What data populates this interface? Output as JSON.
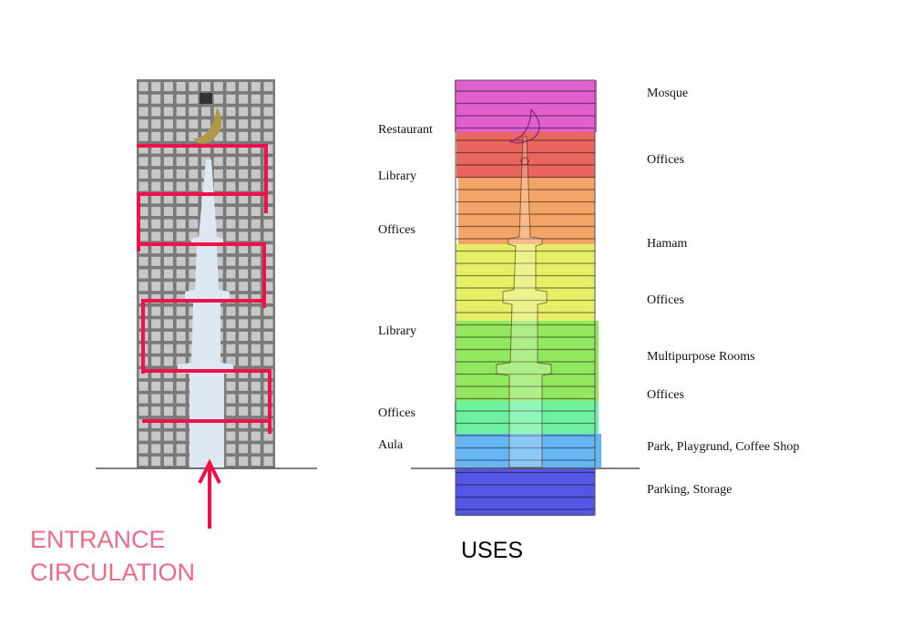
{
  "left_diagram": {
    "caption_line1": "ENTRANCE",
    "caption_line2": "CIRCULATION",
    "caption_color": "#f06a88",
    "path_color": "#f0104a",
    "facade_color": "#7a7a7a",
    "window_color": "#c8c8c8"
  },
  "right_diagram": {
    "caption": "USES",
    "left_labels": [
      "Restaurant",
      "Library",
      "Offices",
      "Library",
      "Offices",
      "Aula"
    ],
    "right_labels": [
      "Mosque",
      "Offices",
      "Hamam",
      "Offices",
      "Multipurpose Rooms",
      "Offices",
      "Park, Playgrund, Coffee Shop",
      "Parking, Storage"
    ],
    "band_colors": [
      "#e060d0",
      "#e8665e",
      "#f5a468",
      "#e6ef66",
      "#92e85e",
      "#6ef2a2",
      "#66b6f4",
      "#5656e6"
    ]
  }
}
